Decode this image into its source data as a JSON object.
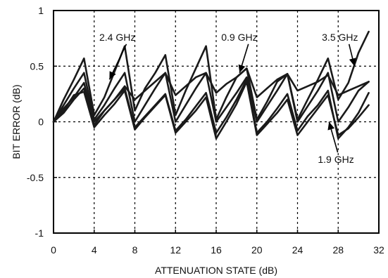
{
  "chart_data": {
    "type": "line",
    "title": "",
    "xlabel": "ATTENUATION STATE (dB)",
    "ylabel": "BIT ERROR (dB)",
    "xlim": [
      0,
      32
    ],
    "ylim": [
      -1,
      1
    ],
    "xticks": [
      0,
      4,
      8,
      12,
      16,
      20,
      24,
      28,
      32
    ],
    "yticks": [
      -1,
      -0.5,
      0,
      0.5,
      1
    ],
    "ytick_labels": [
      "-1",
      "-0.5",
      "0",
      "0.5",
      "1"
    ],
    "grid": "dashed",
    "x": [
      0,
      1,
      2,
      3,
      4,
      5,
      6,
      7,
      8,
      9,
      10,
      11,
      12,
      13,
      14,
      15,
      16,
      17,
      18,
      19,
      20,
      21,
      22,
      23,
      24,
      25,
      26,
      27,
      28,
      29,
      30,
      31
    ],
    "series": [
      {
        "values": [
          0,
          0.2,
          0.38,
          0.57,
          0.06,
          0.22,
          0.45,
          0.68,
          0.1,
          0.3,
          0.44,
          0.6,
          0.06,
          0.28,
          0.48,
          0.68,
          0.02,
          0.22,
          0.4,
          0.48,
          0.02,
          0.18,
          0.36,
          0.43,
          0.02,
          0.2,
          0.38,
          0.57,
          0.2,
          0.35,
          0.62,
          0.81
        ]
      },
      {
        "values": [
          0,
          0.15,
          0.3,
          0.44,
          0.02,
          0.15,
          0.3,
          0.44,
          0.0,
          0.15,
          0.3,
          0.44,
          0.0,
          0.15,
          0.3,
          0.44,
          0.0,
          0.13,
          0.26,
          0.4,
          0.0,
          0.14,
          0.28,
          0.43,
          0.0,
          0.14,
          0.28,
          0.44,
          0.0,
          0.13,
          0.28,
          0.36
        ]
      },
      {
        "values": [
          0,
          0.12,
          0.22,
          0.35,
          0.0,
          0.1,
          0.2,
          0.32,
          0.2,
          0.28,
          0.36,
          0.44,
          0.24,
          0.32,
          0.4,
          0.44,
          0.26,
          0.34,
          0.4,
          0.48,
          0.22,
          0.3,
          0.38,
          0.43,
          0.28,
          0.32,
          0.36,
          0.42,
          0.24,
          0.28,
          0.32,
          0.36
        ]
      },
      {
        "values": [
          0,
          0.08,
          0.2,
          0.3,
          -0.03,
          0.1,
          0.2,
          0.3,
          -0.05,
          0.05,
          0.15,
          0.25,
          -0.08,
          0.02,
          0.14,
          0.26,
          -0.1,
          0.04,
          0.2,
          0.38,
          -0.1,
          0.0,
          0.12,
          0.25,
          -0.08,
          0.05,
          0.15,
          0.28,
          -0.15,
          -0.05,
          0.08,
          0.26
        ]
      },
      {
        "values": [
          0,
          0.1,
          0.24,
          0.27,
          -0.05,
          0.06,
          0.16,
          0.28,
          -0.07,
          0.04,
          0.14,
          0.24,
          -0.1,
          0.0,
          0.1,
          0.22,
          -0.15,
          0.0,
          0.16,
          0.36,
          -0.12,
          -0.02,
          0.08,
          0.2,
          -0.12,
          0.0,
          0.12,
          0.24,
          -0.12,
          -0.06,
          0.04,
          0.15
        ]
      }
    ],
    "annotations": [
      {
        "text": "2.4 GHz",
        "x": 4.5,
        "y": 0.73,
        "arrow_to": [
          5.5,
          0.38
        ]
      },
      {
        "text": "0.9 GHz",
        "x": 16.5,
        "y": 0.73,
        "arrow_to": [
          18.3,
          0.44
        ]
      },
      {
        "text": "3.5 GHz",
        "x": 26.4,
        "y": 0.73,
        "arrow_to": [
          29.6,
          0.5
        ]
      },
      {
        "text": "1.9 GHz",
        "x": 26.0,
        "y": -0.37,
        "arrow_to": [
          27.1,
          0.0
        ]
      }
    ]
  }
}
